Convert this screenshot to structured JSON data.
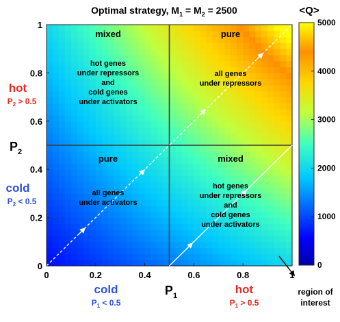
{
  "chart_data": {
    "type": "heatmap",
    "title_text": "Optimal strategy, M",
    "title_sub1": "1",
    "title_mid": " = M",
    "title_sub2": "2",
    "title_end": " = 2500",
    "x": {
      "label": "P",
      "label_sub": "1",
      "range": [
        0,
        1
      ],
      "ticks": [
        0,
        0.2,
        0.4,
        0.6,
        0.8,
        1
      ],
      "tick_labels": [
        "0",
        "0.2",
        "0.4",
        "0.6",
        "0.8",
        "1"
      ]
    },
    "y": {
      "label": "P",
      "label_sub": "2",
      "range": [
        0,
        1
      ],
      "ticks": [
        0,
        0.2,
        0.4,
        0.6,
        0.8,
        1
      ],
      "tick_labels": [
        "0",
        "0.2",
        "0.4",
        "0.6",
        "0.8",
        "1"
      ]
    },
    "colorbar": {
      "label": "<Q>",
      "range": [
        0,
        5000
      ],
      "ticks": [
        0,
        1000,
        2000,
        3000,
        4000,
        5000
      ],
      "tick_labels": [
        "0",
        "1000",
        "2000",
        "3000",
        "4000",
        "5000"
      ],
      "colormap": "jet"
    },
    "value_model": "Q ≈ 5000 × P1 × P2 (approximately, diagonal gradient)",
    "dividers": {
      "x": 0.5,
      "y": 0.5
    },
    "diagonal": {
      "from": [
        0,
        0
      ],
      "to": [
        1,
        1
      ],
      "dashed_below": 0.5,
      "solid_region": "lower-right arrows"
    },
    "regions": [
      {
        "name": "top-left",
        "title": "mixed",
        "lines": [
          "hot genes",
          "under repressors",
          "and",
          "cold genes",
          "under activators"
        ]
      },
      {
        "name": "top-right",
        "title": "pure",
        "lines": [
          "all genes",
          "under repressors"
        ]
      },
      {
        "name": "bottom-left",
        "title": "pure",
        "lines": [
          "all genes",
          "under activators"
        ]
      },
      {
        "name": "bottom-right",
        "title": "mixed",
        "lines": [
          "hot genes",
          "under repressors",
          "and",
          "cold genes",
          "under activators"
        ]
      }
    ],
    "side_labels": {
      "y_hot": "hot",
      "y_hot_cond_p": "P",
      "y_hot_cond_sub": "2",
      "y_hot_cond_rest": " > 0.5",
      "y_cold": "cold",
      "y_cold_cond_p": "P",
      "y_cold_cond_sub": "2",
      "y_cold_cond_rest": " < 0.5",
      "x_cold": "cold",
      "x_cold_cond_p": "P",
      "x_cold_cond_sub": "1",
      "x_cold_cond_rest": " < 0.5",
      "x_hot": "hot",
      "x_hot_cond_p": "P",
      "x_hot_cond_sub": "1",
      "x_hot_cond_rest": " > 0.5"
    },
    "annotation": {
      "line1": "region of",
      "line2": "interest"
    },
    "colors": {
      "hot": "#e8271f",
      "cold": "#2e4fe0",
      "text": "#000000",
      "divider": "#3a3a3a"
    }
  }
}
